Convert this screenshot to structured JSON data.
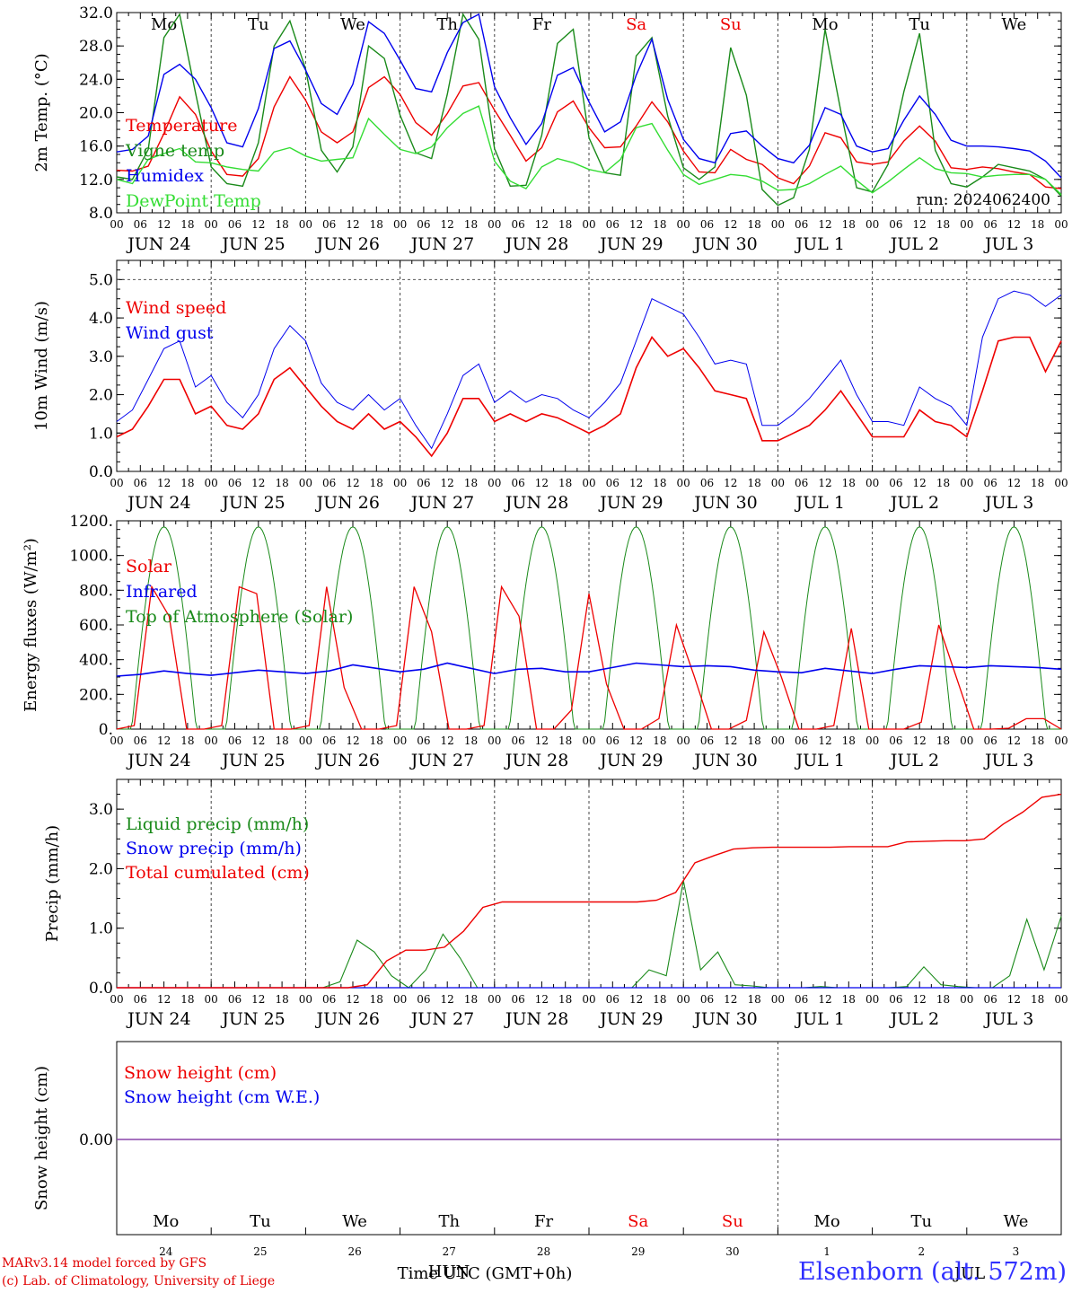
{
  "days": [
    "JUN 24",
    "JUN 25",
    "JUN 26",
    "JUN 27",
    "JUN 28",
    "JUN 29",
    "JUN 30",
    "JUL  1",
    "JUL  2",
    "JUL  3"
  ],
  "hour_labels": [
    "00",
    "06",
    "12",
    "18"
  ],
  "hour_label_end": "00",
  "weekdays": [
    "Mo",
    "Tu",
    "We",
    "Th",
    "Fr",
    "Sa",
    "Su",
    "Mo",
    "Tu",
    "We"
  ],
  "weekend_indices": [
    5,
    6
  ],
  "day_numbers": [
    "24",
    "25",
    "26",
    "27",
    "28",
    "29",
    "30",
    "1",
    "2",
    "3"
  ],
  "run_label": "run: 2024062400",
  "x_axis_title": "Time UTC (GMT+0h)",
  "x_axis_title_overlap": "HUN",
  "footer": {
    "line1": "MARv3.14 model forced by GFS",
    "line2": "(c) Lab. of Climatology, University of Liege",
    "station_main": "Elsenborn (alt. 572m)",
    "station_overlap": "JUL"
  },
  "colors": {
    "red": "#ee0000",
    "darkgreen": "#1a8a1a",
    "blue": "#0000ee",
    "lightgreen": "#33dd33",
    "purple": "#8844aa"
  },
  "chart_data": [
    {
      "type": "line",
      "ylabel": "2m Temp. (°C)",
      "ylim": [
        8,
        32
      ],
      "yticks": [
        "8.0",
        "12.0",
        "16.0",
        "20.0",
        "24.0",
        "28.0",
        "32.0"
      ],
      "ytick_values": [
        8,
        12,
        16,
        20,
        24,
        28,
        32
      ],
      "x_hours_step": 6,
      "series": [
        {
          "name": "Temperature",
          "color": "#ee0000",
          "values": [
            13.1,
            13.0,
            13.6,
            17.5,
            21.9,
            19.8,
            15.4,
            12.6,
            12.4,
            14.5,
            20.7,
            24.3,
            21.5,
            17.7,
            16.4,
            17.7,
            23.0,
            24.3,
            22.2,
            18.8,
            17.3,
            19.9,
            23.2,
            23.6,
            20.3,
            17.3,
            14.2,
            15.8,
            20.1,
            21.4,
            18.2,
            15.8,
            15.9,
            18.4,
            21.3,
            18.9,
            15.4,
            12.9,
            12.8,
            15.6,
            14.4,
            13.8,
            12.2,
            11.5,
            13.6,
            17.6,
            17.0,
            14.1,
            13.8,
            14.1,
            16.6,
            18.4,
            16.6,
            13.4,
            13.2,
            13.5,
            13.3,
            12.9,
            12.6,
            11.1,
            10.9
          ]
        },
        {
          "name": "Vigne temp",
          "color": "#1a8a1a",
          "values": [
            12.3,
            12.0,
            15.6,
            29.0,
            31.8,
            22.4,
            13.5,
            11.5,
            11.2,
            16.4,
            28.0,
            31.0,
            25.2,
            15.5,
            12.9,
            15.9,
            28.0,
            26.5,
            19.7,
            15.2,
            14.5,
            22.2,
            31.8,
            28.8,
            15.7,
            11.2,
            11.3,
            17.3,
            28.3,
            30.0,
            17.0,
            12.8,
            12.5,
            26.8,
            29.0,
            19.6,
            13.4,
            12.0,
            13.5,
            27.8,
            22.1,
            10.8,
            8.9,
            9.8,
            15.6,
            30.0,
            20.2,
            11.0,
            10.5,
            13.8,
            22.5,
            29.5,
            15.5,
            11.5,
            11.1,
            12.3,
            13.8,
            13.4,
            13.0,
            12.0,
            10.0
          ]
        },
        {
          "name": "Humidex",
          "color": "#0000ee",
          "values": [
            15.3,
            15.6,
            17.2,
            24.6,
            25.8,
            24.0,
            20.6,
            16.4,
            15.9,
            20.5,
            27.7,
            28.6,
            25.1,
            21.1,
            19.8,
            23.4,
            30.9,
            29.5,
            26.3,
            22.9,
            22.5,
            27.2,
            30.8,
            31.8,
            23.1,
            19.4,
            16.2,
            18.7,
            24.5,
            25.4,
            21.3,
            17.7,
            18.9,
            24.5,
            28.8,
            21.6,
            16.8,
            14.5,
            14.0,
            17.5,
            17.8,
            16.0,
            14.5,
            14.0,
            16.1,
            20.6,
            19.8,
            16.0,
            15.3,
            15.7,
            19.1,
            22.0,
            19.8,
            16.7,
            16.0,
            16.0,
            15.9,
            15.7,
            15.4,
            14.2,
            12.2
          ]
        },
        {
          "name": "DewPoint Temp",
          "color": "#33dd33",
          "values": [
            12.0,
            11.5,
            14.4,
            15.1,
            15.7,
            14.1,
            14.0,
            13.5,
            13.2,
            13.0,
            15.3,
            15.8,
            14.8,
            14.2,
            14.4,
            14.6,
            19.3,
            17.4,
            15.6,
            15.1,
            15.9,
            18.2,
            19.9,
            20.8,
            14.2,
            11.8,
            10.9,
            13.5,
            14.5,
            14.0,
            13.2,
            12.8,
            14.4,
            18.2,
            18.7,
            15.5,
            12.6,
            11.4,
            12.0,
            12.6,
            12.4,
            11.8,
            10.7,
            10.8,
            11.5,
            12.6,
            13.6,
            11.9,
            10.4,
            11.7,
            13.2,
            14.6,
            13.3,
            12.8,
            12.7,
            12.3,
            12.5,
            12.6,
            12.6,
            12.0,
            10.2
          ]
        }
      ]
    },
    {
      "type": "line",
      "ylabel": "10m Wind (m/s)",
      "ylim": [
        0,
        5.5
      ],
      "yticks": [
        "0.0",
        "1.0",
        "2.0",
        "3.0",
        "4.0",
        "5.0"
      ],
      "ytick_values": [
        0,
        1,
        2,
        3,
        4,
        5
      ],
      "dashed_reference": 5.0,
      "x_hours_step": 6,
      "series": [
        {
          "name": "Wind speed",
          "color": "#ee0000",
          "values": [
            0.9,
            1.1,
            1.7,
            2.4,
            2.4,
            1.5,
            1.7,
            1.2,
            1.1,
            1.5,
            2.4,
            2.7,
            2.2,
            1.7,
            1.3,
            1.1,
            1.5,
            1.1,
            1.3,
            0.9,
            0.4,
            1.0,
            1.9,
            1.9,
            1.3,
            1.5,
            1.3,
            1.5,
            1.4,
            1.2,
            1.0,
            1.2,
            1.5,
            2.7,
            3.5,
            3.0,
            3.2,
            2.7,
            2.1,
            2.0,
            1.9,
            0.8,
            0.8,
            1.0,
            1.2,
            1.6,
            2.1,
            1.5,
            0.9,
            0.9,
            0.9,
            1.6,
            1.3,
            1.2,
            0.9,
            2.1,
            3.4,
            3.5,
            3.5,
            2.6,
            3.4
          ]
        },
        {
          "name": "Wind gust",
          "color": "#0000ee",
          "values": [
            1.3,
            1.6,
            2.4,
            3.2,
            3.4,
            2.2,
            2.5,
            1.8,
            1.4,
            2.0,
            3.2,
            3.8,
            3.4,
            2.3,
            1.8,
            1.6,
            2.0,
            1.6,
            1.9,
            1.2,
            0.6,
            1.5,
            2.5,
            2.8,
            1.8,
            2.1,
            1.8,
            2.0,
            1.9,
            1.6,
            1.4,
            1.8,
            2.3,
            3.4,
            4.5,
            4.3,
            4.1,
            3.5,
            2.8,
            2.9,
            2.8,
            1.2,
            1.2,
            1.5,
            1.9,
            2.4,
            2.9,
            2.0,
            1.3,
            1.3,
            1.2,
            2.2,
            1.9,
            1.7,
            1.2,
            3.5,
            4.5,
            4.7,
            4.6,
            4.3,
            4.6
          ]
        }
      ]
    },
    {
      "type": "line",
      "ylabel": "Energy fluxes (W/m²)",
      "ylim": [
        0,
        1200
      ],
      "yticks": [
        "0.",
        "200.",
        "400.",
        "600.",
        "800.",
        "1000.",
        "1200."
      ],
      "ytick_values": [
        0,
        200,
        400,
        600,
        800,
        1000,
        1200
      ],
      "x_hours_step": 6,
      "series": [
        {
          "name": "Solar",
          "color": "#ee0000",
          "values": [
            0,
            20,
            820,
            650,
            0,
            0,
            20,
            820,
            780,
            0,
            0,
            20,
            820,
            240,
            0,
            0,
            20,
            820,
            560,
            0,
            0,
            20,
            820,
            650,
            0,
            0,
            110,
            780,
            260,
            0,
            0,
            60,
            600,
            310,
            0,
            0,
            50,
            560,
            300,
            0,
            0,
            20,
            580,
            0,
            0,
            0,
            40,
            600,
            300,
            0,
            0,
            5,
            60,
            60,
            0
          ]
        },
        {
          "name": "Infrared",
          "color": "#0000ee",
          "values": [
            305,
            315,
            335,
            320,
            310,
            325,
            340,
            330,
            320,
            335,
            370,
            350,
            330,
            345,
            380,
            350,
            320,
            345,
            350,
            330,
            330,
            355,
            380,
            370,
            360,
            365,
            360,
            340,
            330,
            325,
            350,
            335,
            320,
            345,
            365,
            360,
            355,
            365,
            360,
            355,
            345
          ]
        },
        {
          "name": "Top of Atmosphere (Solar)",
          "color": "#1a8a1a",
          "peak": 1165
        }
      ]
    },
    {
      "type": "line",
      "ylabel": "Precip (mm/h)",
      "ylim": [
        0,
        3.5
      ],
      "yticks": [
        "0.0",
        "1.0",
        "2.0",
        "3.0"
      ],
      "ytick_values": [
        0,
        1,
        2,
        3
      ],
      "x_hours_step": 6,
      "series": [
        {
          "name": "Liquid precip (mm/h)",
          "color": "#1a8a1a",
          "values": [
            0,
            0,
            0,
            0,
            0,
            0,
            0,
            0,
            0,
            0,
            0,
            0,
            0,
            0.1,
            0.8,
            0.6,
            0.2,
            0,
            0.3,
            0.9,
            0.5,
            0,
            0,
            0,
            0,
            0,
            0,
            0,
            0,
            0,
            0,
            0.3,
            0.2,
            1.8,
            0.3,
            0.6,
            0.05,
            0.03,
            0,
            0,
            0,
            0.02,
            0,
            0,
            0,
            0,
            0.02,
            0.35,
            0.05,
            0.02,
            0,
            0,
            0.2,
            1.15,
            0.3,
            1.2
          ]
        },
        {
          "name": "Snow precip (mm/h)",
          "color": "#0000ee",
          "values": [
            0,
            0
          ]
        },
        {
          "name": "Total cumulated (cm)",
          "color": "#ee0000",
          "values": [
            0,
            0,
            0,
            0,
            0,
            0,
            0,
            0,
            0,
            0,
            0,
            0,
            0,
            0.05,
            0.45,
            0.63,
            0.63,
            0.68,
            0.95,
            1.35,
            1.44,
            1.44,
            1.44,
            1.44,
            1.44,
            1.44,
            1.44,
            1.44,
            1.47,
            1.6,
            2.1,
            2.22,
            2.33,
            2.35,
            2.36,
            2.36,
            2.36,
            2.36,
            2.37,
            2.37,
            2.37,
            2.45,
            2.46,
            2.47,
            2.47,
            2.5,
            2.75,
            2.95,
            3.2,
            3.25
          ]
        }
      ]
    },
    {
      "type": "line",
      "ylabel": "Snow height (cm)",
      "yticks": [
        "0.00"
      ],
      "ytick_values": [
        0
      ],
      "series": [
        {
          "name": "Snow height (cm)",
          "color": "#ee0000",
          "values": [
            0,
            0
          ]
        },
        {
          "name": "Snow height (cm W.E.)",
          "color": "#0000ee",
          "values": [
            0,
            0
          ]
        }
      ]
    }
  ]
}
